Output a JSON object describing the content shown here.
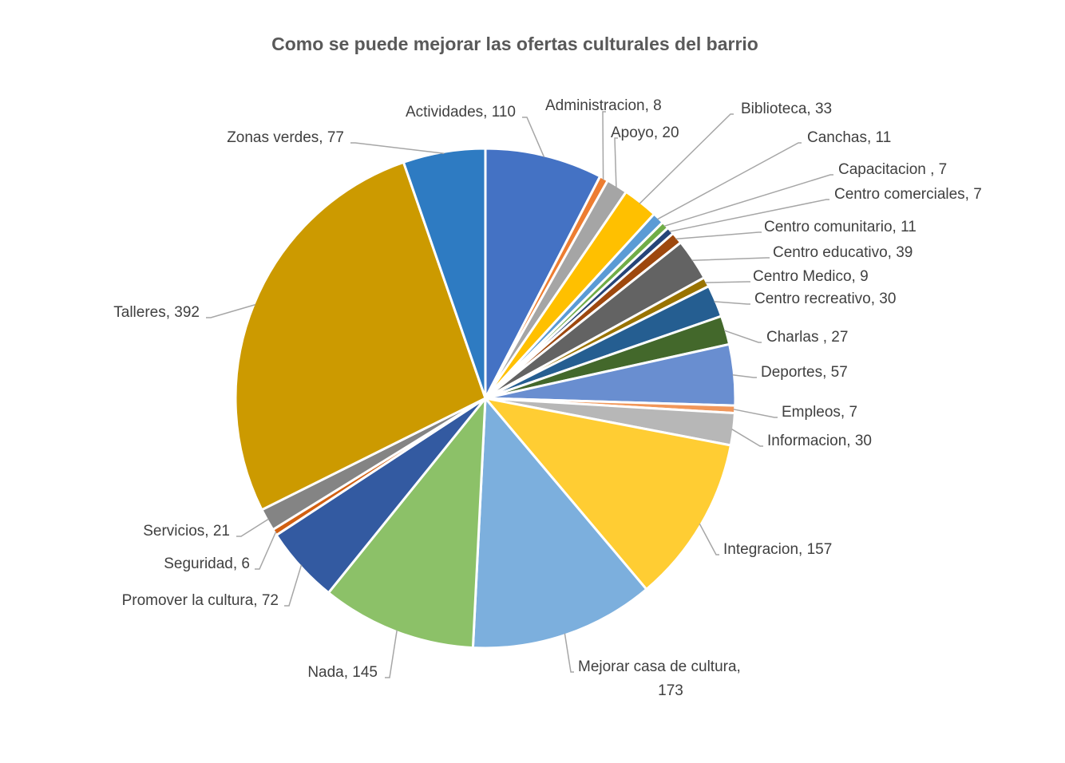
{
  "chart_data": {
    "type": "pie",
    "title": "Como se puede mejorar las ofertas culturales del barrio",
    "slices": [
      {
        "label": "Actividades",
        "value": 110,
        "display": "Actividades, 110",
        "color": "#4472C4"
      },
      {
        "label": "Administracion",
        "value": 8,
        "display": "Administracion, 8",
        "color": "#ED7D31"
      },
      {
        "label": "Apoyo",
        "value": 20,
        "display": "Apoyo,  20",
        "color": "#A5A5A5"
      },
      {
        "label": "Biblioteca",
        "value": 33,
        "display": "Biblioteca, 33",
        "color": "#FFC000"
      },
      {
        "label": "Canchas",
        "value": 11,
        "display": "Canchas, 11",
        "color": "#5B9BD5"
      },
      {
        "label": "Capacitacion",
        "value": 7,
        "display": "Capacitacion , 7",
        "color": "#70AD47"
      },
      {
        "label": "Centro comerciales",
        "value": 7,
        "display": "Centro comerciales, 7",
        "color": "#264478"
      },
      {
        "label": "Centro comunitario",
        "value": 11,
        "display": "Centro comunitario, 11",
        "color": "#9E480E"
      },
      {
        "label": "Centro educativo",
        "value": 39,
        "display": "Centro educativo, 39",
        "color": "#636363"
      },
      {
        "label": "Centro Medico",
        "value": 9,
        "display": "Centro Medico, 9",
        "color": "#997300"
      },
      {
        "label": "Centro recreativo",
        "value": 30,
        "display": "Centro recreativo, 30",
        "color": "#255E91"
      },
      {
        "label": "Charlas",
        "value": 27,
        "display": "Charlas , 27",
        "color": "#43682B"
      },
      {
        "label": "Deportes",
        "value": 57,
        "display": "Deportes, 57",
        "color": "#698ED0"
      },
      {
        "label": "Empleos",
        "value": 7,
        "display": "Empleos, 7",
        "color": "#F1975A"
      },
      {
        "label": "Informacion",
        "value": 30,
        "display": "Informacion, 30",
        "color": "#B7B7B7"
      },
      {
        "label": "Integracion",
        "value": 157,
        "display": "Integracion, 157",
        "color": "#FFCD33"
      },
      {
        "label": "Mejorar casa de cultura",
        "value": 173,
        "display": "Mejorar casa de cultura,\n173",
        "color": "#7CAFDD"
      },
      {
        "label": "Nada",
        "value": 145,
        "display": "Nada, 145",
        "color": "#8CC168"
      },
      {
        "label": "Promover la cultura",
        "value": 72,
        "display": "Promover  la cultura, 72",
        "color": "#335AA1"
      },
      {
        "label": "Seguridad",
        "value": 6,
        "display": "Seguridad, 6",
        "color": "#D26012"
      },
      {
        "label": "Servicios",
        "value": 21,
        "display": "Servicios, 21",
        "color": "#848484"
      },
      {
        "label": "Talleres",
        "value": 392,
        "display": "Talleres, 392",
        "color": "#CC9A00"
      },
      {
        "label": "Zonas verdes",
        "value": 77,
        "display": "Zonas verdes, 77",
        "color": "#2E7BC2"
      }
    ]
  }
}
